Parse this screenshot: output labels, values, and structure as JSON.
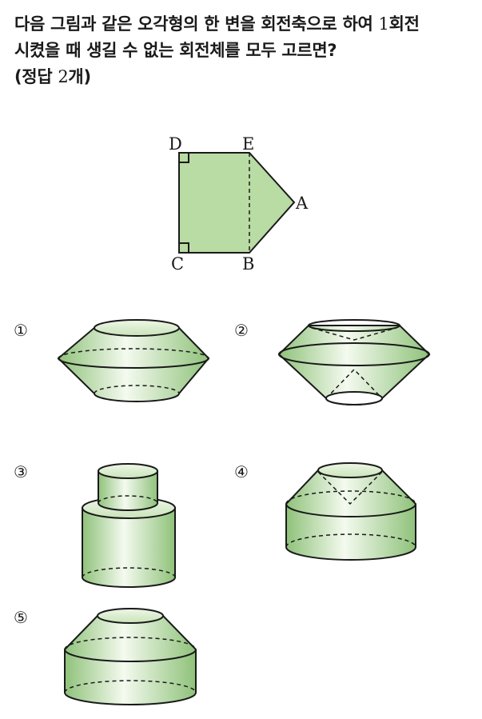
{
  "question": {
    "line1": "다음 그림과 같은 오각형의 한 변을 회전축으로 하여 ",
    "line1_num": "1",
    "line1_end": "회전",
    "line2": "시켰을 때 생길 수 없는 회전체를 모두 고르면?",
    "line3_pre": "(정답 ",
    "line3_num": "2",
    "line3_post": "개)"
  },
  "pentagon": {
    "vertices": [
      "D",
      "E",
      "A",
      "B",
      "C"
    ]
  },
  "choices": [
    "①",
    "②",
    "③",
    "④",
    "⑤"
  ],
  "colors": {
    "fill": "#b9dba4",
    "fill_dark": "#98c884",
    "fill_light": "#e6f2dc",
    "stroke": "#1a1a1a"
  }
}
